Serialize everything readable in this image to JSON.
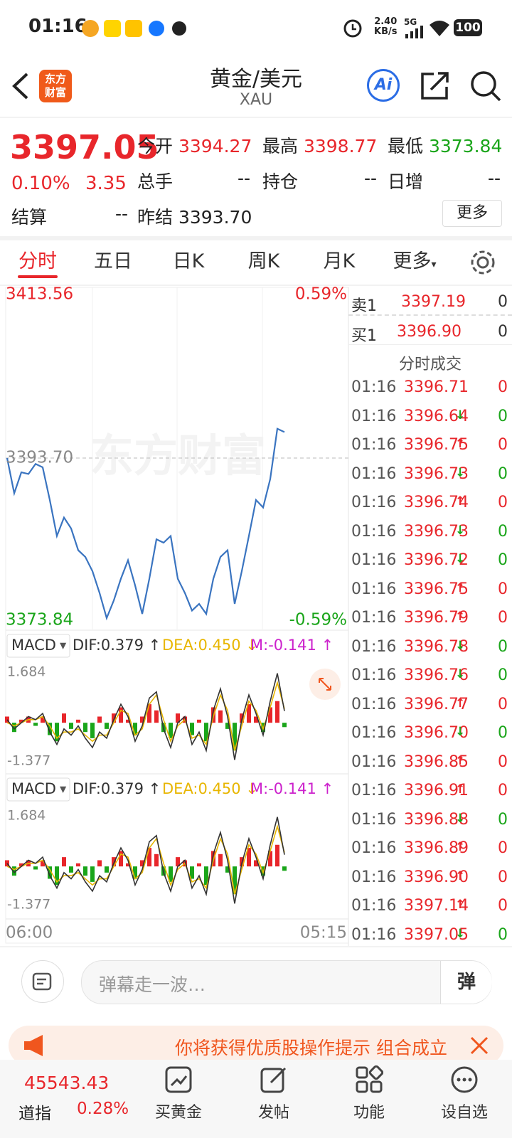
{
  "status_bar": {
    "time": "01:16",
    "net_speed": "2.40",
    "net_unit": "KB/s",
    "signal": "5G",
    "battery": "100"
  },
  "header": {
    "logo": [
      "东方",
      "财富"
    ],
    "title": "黄金/美元",
    "code": "XAU",
    "ai": "Ai"
  },
  "quote": {
    "price": "3397.05",
    "change_pct": "0.10%",
    "change": "3.35",
    "fields": [
      {
        "label": "今开",
        "value": "3394.27"
      },
      {
        "label": "最高",
        "value": "3398.77"
      },
      {
        "label": "最低",
        "value": "3373.84"
      },
      {
        "label": "总手",
        "value": "--"
      },
      {
        "label": "持仓",
        "value": "--"
      },
      {
        "label": "日增",
        "value": "--"
      },
      {
        "label": "结算",
        "value": "--"
      },
      {
        "label": "昨结",
        "value": "3393.70"
      }
    ],
    "more": "更多"
  },
  "tabs": [
    "分时",
    "五日",
    "日K",
    "周K",
    "月K",
    "更多"
  ],
  "active_tab": 0,
  "chart": {
    "type": "line",
    "watermark": "东方财富",
    "ylim": [
      3373.84,
      3413.56
    ],
    "pct_labels": [
      "-0.59%",
      "0.59%"
    ],
    "base": {
      "value": 3393.7,
      "label": "3393.70"
    },
    "color": "#3a74c0",
    "values": [
      3393.7,
      3389.5,
      3392,
      3391.8,
      3393,
      3392.6,
      3388.7,
      3384.4,
      3386.6,
      3385.3,
      3382.7,
      3381.9,
      3380.2,
      3377.6,
      3374.6,
      3376.7,
      3379.3,
      3381.5,
      3378.5,
      3375.1,
      3379.3,
      3384,
      3383.6,
      3384.4,
      3379.3,
      3377.6,
      3375.5,
      3376.3,
      3375.1,
      3379.3,
      3381.9,
      3382.7,
      3376.3,
      3380.2,
      3384.4,
      3388.7,
      3387.8,
      3391.2,
      3397.2,
      3396.8
    ],
    "time_labels": [
      "06:00",
      "05:15"
    ]
  },
  "macd": {
    "indicator": "MACD",
    "dif_label": "DIF:0.379 ↑",
    "dea_label": "DEA:0.450 ↓",
    "m_label": "M:-0.141 ↑",
    "ylim": [
      -1.377,
      1.684
    ],
    "up_color": "#e8262b",
    "down_color": "#1aa51a",
    "dif_color": "#333333",
    "dea_color": "#e8b600",
    "hist": [
      0.2,
      -0.3,
      0.1,
      0.2,
      -0.1,
      0.2,
      -0.4,
      -0.6,
      0.3,
      -0.2,
      0.1,
      -0.3,
      -0.5,
      0.2,
      -0.2,
      0.3,
      0.5,
      0.1,
      -0.4,
      0.2,
      0.6,
      0.4,
      -0.3,
      -0.5,
      0.3,
      0.2,
      -0.4,
      0.1,
      -0.6,
      0.5,
      0.4,
      -0.2,
      -0.9,
      0.3,
      0.6,
      0.2,
      -0.3,
      0.5,
      0.7,
      -0.141
    ],
    "dif": [
      0.1,
      -0.2,
      0,
      0.2,
      0.1,
      0.3,
      -0.3,
      -0.7,
      -0.2,
      -0.4,
      -0.1,
      -0.5,
      -0.8,
      -0.3,
      -0.5,
      0.1,
      0.6,
      0.2,
      -0.6,
      -0.1,
      0.8,
      1.0,
      -0.2,
      -0.8,
      0,
      0.2,
      -0.7,
      -0.3,
      -0.9,
      0.4,
      1.1,
      0.2,
      -1.2,
      0.1,
      0.9,
      0.3,
      -0.4,
      0.7,
      1.6,
      0.379
    ],
    "dea": [
      0,
      -0.1,
      0,
      0.1,
      0.1,
      0.2,
      -0.1,
      -0.5,
      -0.3,
      -0.3,
      -0.2,
      -0.4,
      -0.6,
      -0.4,
      -0.4,
      0,
      0.4,
      0.3,
      -0.4,
      -0.2,
      0.6,
      0.9,
      0.1,
      -0.6,
      -0.1,
      0.1,
      -0.5,
      -0.4,
      -0.7,
      0.2,
      0.9,
      0.4,
      -0.9,
      -0.1,
      0.7,
      0.4,
      -0.2,
      0.5,
      1.3,
      0.45
    ]
  },
  "order_book": [
    {
      "side": "卖1",
      "price": "3397.19",
      "volume": "0"
    },
    {
      "side": "买1",
      "price": "3396.90",
      "volume": "0"
    }
  ],
  "trades_title": "分时成交",
  "trades": [
    {
      "time": "01:16",
      "price": "3396.71",
      "volume": "0"
    },
    {
      "time": "01:16",
      "price": "3396.64",
      "dir": "↓",
      "volume": "0"
    },
    {
      "time": "01:16",
      "price": "3396.75",
      "dir": "↑",
      "volume": "0"
    },
    {
      "time": "01:16",
      "price": "3396.73",
      "dir": "↓",
      "volume": "0"
    },
    {
      "time": "01:16",
      "price": "3396.74",
      "dir": "↑",
      "volume": "0"
    },
    {
      "time": "01:16",
      "price": "3396.73",
      "dir": "↓",
      "volume": "0"
    },
    {
      "time": "01:16",
      "price": "3396.72",
      "dir": "↓",
      "volume": "0"
    },
    {
      "time": "01:16",
      "price": "3396.75",
      "dir": "↑",
      "volume": "0"
    },
    {
      "time": "01:16",
      "price": "3396.79",
      "dir": "↑",
      "volume": "0"
    },
    {
      "time": "01:16",
      "price": "3396.78",
      "dir": "↓",
      "volume": "0"
    },
    {
      "time": "01:16",
      "price": "3396.76",
      "dir": "↓",
      "volume": "0"
    },
    {
      "time": "01:16",
      "price": "3396.77",
      "dir": "↑",
      "volume": "0"
    },
    {
      "time": "01:16",
      "price": "3396.70",
      "dir": "↓",
      "volume": "0"
    },
    {
      "time": "01:16",
      "price": "3396.85",
      "dir": "↑",
      "volume": "0"
    },
    {
      "time": "01:16",
      "price": "3396.91",
      "dir": "↑",
      "volume": "0"
    },
    {
      "time": "01:16",
      "price": "3396.88",
      "dir": "↓",
      "volume": "0"
    },
    {
      "time": "01:16",
      "price": "3396.89",
      "dir": "↑",
      "volume": "0"
    },
    {
      "time": "01:16",
      "price": "3396.90",
      "dir": "↑",
      "volume": "0"
    },
    {
      "time": "01:16",
      "price": "3397.14",
      "dir": "↑",
      "volume": "0"
    },
    {
      "time": "01:16",
      "price": "3397.05",
      "dir": "↓",
      "volume": "0"
    }
  ],
  "comment": {
    "placeholder": "弹幕走一波…",
    "danmaku": "弹"
  },
  "banner": {
    "text": "你将获得优质股操作提示 组合成立"
  },
  "nav": {
    "index_value": "45543.43",
    "index_name": "道指",
    "index_change": "0.28%",
    "items": [
      "买黄金",
      "发帖",
      "功能",
      "设自选"
    ]
  }
}
